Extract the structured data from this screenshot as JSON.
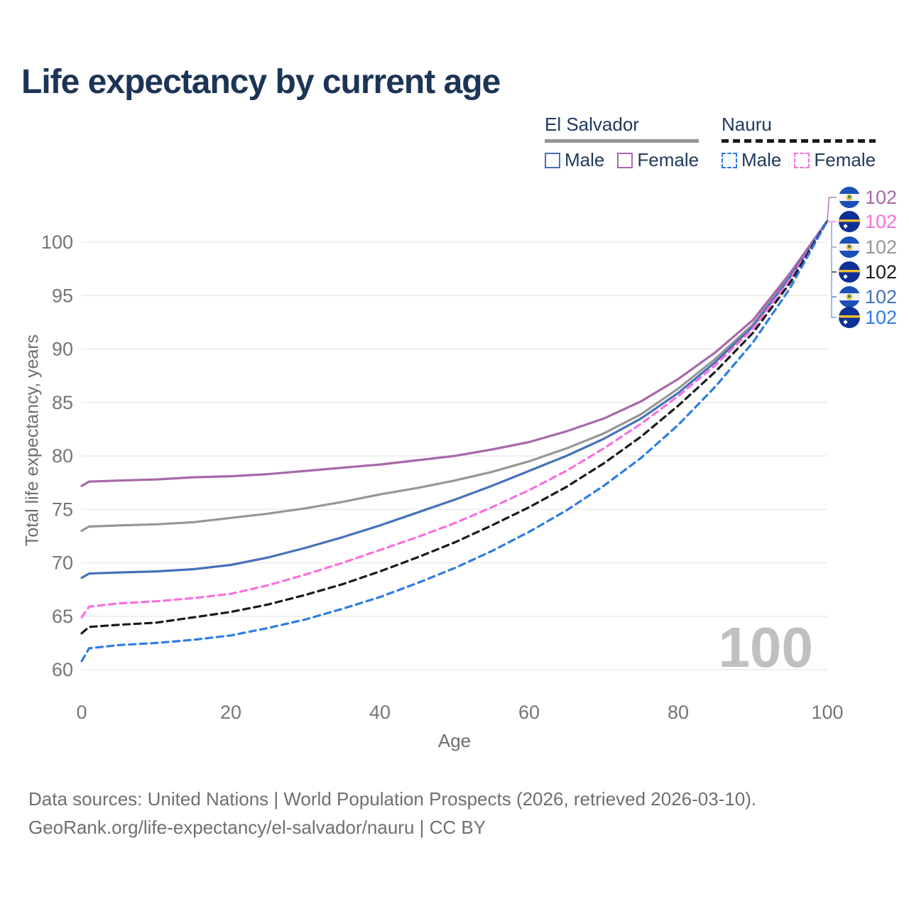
{
  "title": "Life expectancy by current age",
  "watermark": "100",
  "legend": {
    "groups": [
      {
        "label": "El Salvador",
        "line_style": "solid",
        "items": [
          {
            "label": "Male"
          },
          {
            "label": "Female"
          }
        ]
      },
      {
        "label": "Nauru",
        "line_style": "dashed",
        "items": [
          {
            "label": "Male"
          },
          {
            "label": "Female"
          }
        ]
      }
    ]
  },
  "chart_data": {
    "type": "line",
    "title": "Life expectancy by current age",
    "xlabel": "Age",
    "ylabel": "Total life expectancy, years",
    "xlim": [
      0,
      100
    ],
    "ylim": [
      58,
      103
    ],
    "x_ticks": [
      0,
      20,
      40,
      60,
      80,
      100
    ],
    "y_ticks": [
      60,
      65,
      70,
      75,
      80,
      85,
      90,
      95,
      100
    ],
    "grid": "horizontal",
    "legend_position": "top-right",
    "x": [
      0,
      1,
      5,
      10,
      15,
      20,
      25,
      30,
      35,
      40,
      45,
      50,
      55,
      60,
      65,
      70,
      75,
      80,
      85,
      90,
      95,
      100
    ],
    "series": [
      {
        "name": "El Salvador — Female",
        "country": "El Salvador",
        "sex": "female",
        "style": "solid",
        "color": "#a868aa",
        "flag": "sv",
        "end_label": "102",
        "values": [
          77.2,
          77.6,
          77.7,
          77.8,
          78.0,
          78.1,
          78.3,
          78.6,
          78.9,
          79.2,
          79.6,
          80.0,
          80.6,
          81.3,
          82.3,
          83.5,
          85.1,
          87.2,
          89.7,
          92.7,
          97.1,
          102
        ]
      },
      {
        "name": "Nauru — Female",
        "country": "Nauru",
        "sex": "female",
        "style": "dashed",
        "color": "#f970dc",
        "flag": "nr",
        "end_label": "102",
        "values": [
          64.9,
          65.9,
          66.2,
          66.4,
          66.7,
          67.1,
          67.9,
          68.9,
          70.0,
          71.2,
          72.4,
          73.7,
          75.2,
          76.8,
          78.6,
          80.7,
          83.0,
          85.6,
          88.5,
          91.9,
          96.5,
          102
        ]
      },
      {
        "name": "El Salvador — Both sexes",
        "country": "El Salvador",
        "sex": "both",
        "style": "solid",
        "color": "#969696",
        "flag": "sv",
        "end_label": "102",
        "values": [
          73.0,
          73.4,
          73.5,
          73.6,
          73.8,
          74.2,
          74.6,
          75.1,
          75.7,
          76.4,
          77.0,
          77.7,
          78.5,
          79.5,
          80.7,
          82.1,
          83.9,
          86.3,
          89.1,
          92.3,
          96.9,
          102
        ]
      },
      {
        "name": "Nauru — Both sexes",
        "country": "Nauru",
        "sex": "both",
        "style": "dashed",
        "color": "#1a1a1a",
        "flag": "nr",
        "end_label": "102",
        "values": [
          63.4,
          64.0,
          64.2,
          64.4,
          64.9,
          65.4,
          66.1,
          67.0,
          68.0,
          69.2,
          70.5,
          71.9,
          73.5,
          75.2,
          77.1,
          79.3,
          81.8,
          84.7,
          87.9,
          91.5,
          96.2,
          102
        ]
      },
      {
        "name": "El Salvador — Male",
        "country": "El Salvador",
        "sex": "male",
        "style": "solid",
        "color": "#4472b8",
        "flag": "sv",
        "end_label": "102",
        "values": [
          68.6,
          69.0,
          69.1,
          69.2,
          69.4,
          69.8,
          70.5,
          71.4,
          72.4,
          73.5,
          74.7,
          75.9,
          77.2,
          78.6,
          80.0,
          81.6,
          83.5,
          85.9,
          88.8,
          92.1,
          96.7,
          102
        ]
      },
      {
        "name": "Nauru — Male",
        "country": "Nauru",
        "sex": "male",
        "style": "dashed",
        "color": "#2e7ce4",
        "flag": "nr",
        "end_label": "102",
        "values": [
          60.8,
          62.0,
          62.3,
          62.5,
          62.8,
          63.2,
          63.9,
          64.7,
          65.7,
          66.8,
          68.1,
          69.5,
          71.1,
          72.9,
          74.9,
          77.2,
          79.8,
          82.9,
          86.5,
          90.6,
          95.7,
          102
        ]
      }
    ]
  },
  "footer": {
    "line1": "Data sources: United Nations | World Population Prospects (2026, retrieved 2026-03-10).",
    "line2": "GeoRank.org/life-expectancy/el-salvador/nauru | CC BY"
  }
}
